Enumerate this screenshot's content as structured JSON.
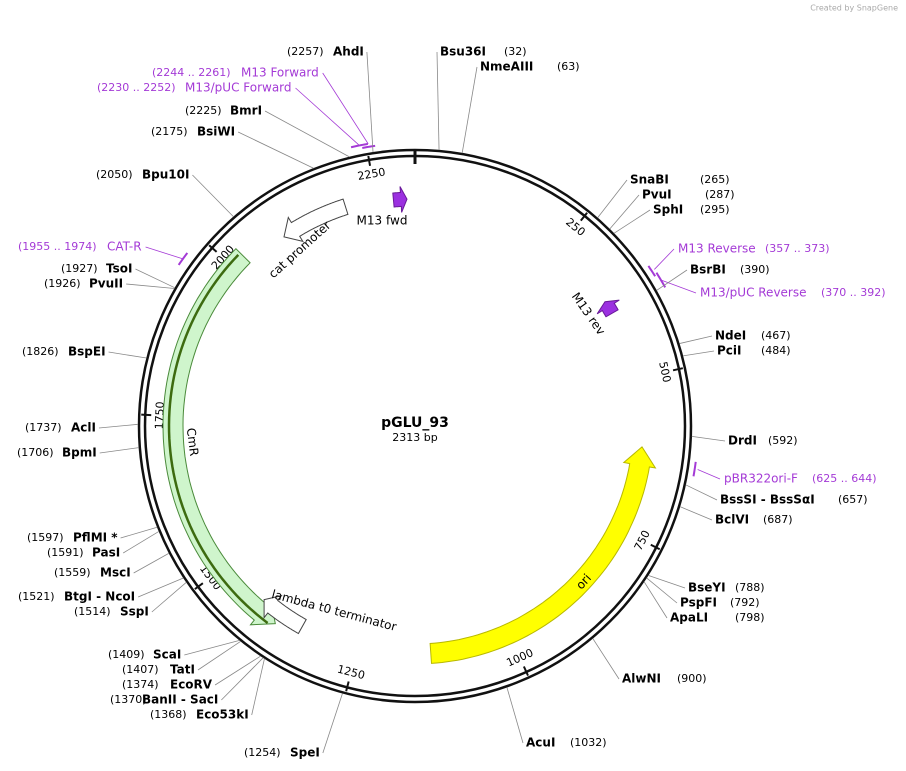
{
  "header": {
    "credit": "Created by SnapGene"
  },
  "plasmid": {
    "name": "pGLU_93",
    "size_label": "2313 bp",
    "ticks": [
      "250",
      "500",
      "750",
      "1000",
      "1250",
      "1500",
      "1750",
      "2000",
      "2250"
    ],
    "sites": [
      {
        "name": "AhdI",
        "position": "(2257)"
      },
      {
        "name": "Bsu36I",
        "position": "(32)"
      },
      {
        "name": "NmeAIII",
        "position": "(63)"
      },
      {
        "name": "SnaBI",
        "position": "(265)"
      },
      {
        "name": "PvuI",
        "position": "(287)"
      },
      {
        "name": "SphI",
        "position": "(295)"
      },
      {
        "name": "BsrBI",
        "position": "(390)"
      },
      {
        "name": "NdeI",
        "position": "(467)"
      },
      {
        "name": "PciI",
        "position": "(484)"
      },
      {
        "name": "DrdI",
        "position": "(592)"
      },
      {
        "name": "BssSI - BssSαI",
        "position": "(657)"
      },
      {
        "name": "BclVI",
        "position": "(687)"
      },
      {
        "name": "BseYI",
        "position": "(788)"
      },
      {
        "name": "PspFI",
        "position": "(792)"
      },
      {
        "name": "ApaLI",
        "position": "(798)"
      },
      {
        "name": "AlwNI",
        "position": "(900)"
      },
      {
        "name": "AcuI",
        "position": "(1032)"
      },
      {
        "name": "SpeI",
        "position": "(1254)"
      },
      {
        "name": "Eco53kI",
        "position": "(1368)"
      },
      {
        "name": "BanII - SacI",
        "position": "(1370)"
      },
      {
        "name": "EcoRV",
        "position": "(1374)"
      },
      {
        "name": "TatI",
        "position": "(1407)"
      },
      {
        "name": "ScaI",
        "position": "(1409)"
      },
      {
        "name": "SspI",
        "position": "(1514)"
      },
      {
        "name": "BtgI - NcoI",
        "position": "(1521)"
      },
      {
        "name": "MscI",
        "position": "(1559)"
      },
      {
        "name": "PasI",
        "position": "(1591)"
      },
      {
        "name": "PflMI *",
        "position": "(1597)"
      },
      {
        "name": "BpmI",
        "position": "(1706)"
      },
      {
        "name": "AclI",
        "position": "(1737)"
      },
      {
        "name": "BspEI",
        "position": "(1826)"
      },
      {
        "name": "PvuII",
        "position": "(1926)"
      },
      {
        "name": "TsoI",
        "position": "(1927)"
      },
      {
        "name": "Bpu10I",
        "position": "(2050)"
      },
      {
        "name": "BsiWI",
        "position": "(2175)"
      },
      {
        "name": "BmrI",
        "position": "(2225)"
      }
    ],
    "primers": [
      {
        "name": "M13 Forward",
        "range": "(2244 .. 2261)"
      },
      {
        "name": "M13/pUC Forward",
        "range": "(2230 .. 2252)"
      },
      {
        "name": "M13 Reverse",
        "range": "(357 .. 373)"
      },
      {
        "name": "M13/pUC Reverse",
        "range": "(370 .. 392)"
      },
      {
        "name": "pBR322ori-F",
        "range": "(625 .. 644)"
      },
      {
        "name": "CAT-R",
        "range": "(1955 .. 1974)"
      }
    ],
    "features": [
      {
        "name": "M13 fwd"
      },
      {
        "name": "M13 rev"
      },
      {
        "name": "cat promoter"
      },
      {
        "name": "CmR"
      },
      {
        "name": "lambda t0 terminator"
      },
      {
        "name": "ori"
      }
    ]
  }
}
